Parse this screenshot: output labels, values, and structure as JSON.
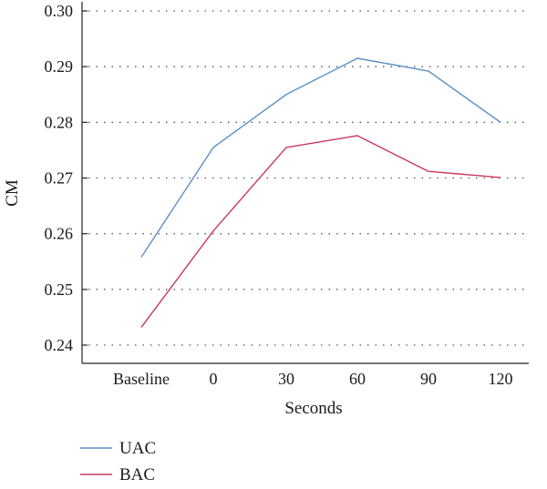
{
  "chart_data": {
    "type": "line",
    "categories": [
      "Baseline",
      "0",
      "30",
      "60",
      "90",
      "120"
    ],
    "series": [
      {
        "name": "UAC",
        "color": "#5b8fc5",
        "values": [
          0.2558,
          0.2755,
          0.285,
          0.2915,
          0.2892,
          0.28
        ]
      },
      {
        "name": "BAC",
        "color": "#c8385f",
        "values": [
          0.2432,
          0.2605,
          0.2755,
          0.2776,
          0.2712,
          0.2701
        ]
      }
    ],
    "yticks": [
      "0.24",
      "0.25",
      "0.26",
      "0.27",
      "0.28",
      "0.29",
      "0.30"
    ],
    "xlabel": "Seconds",
    "ylabel": "CM",
    "ylim": [
      0.24,
      0.3
    ],
    "grid": "horizontal-dotted",
    "legend": "bottom-left"
  }
}
